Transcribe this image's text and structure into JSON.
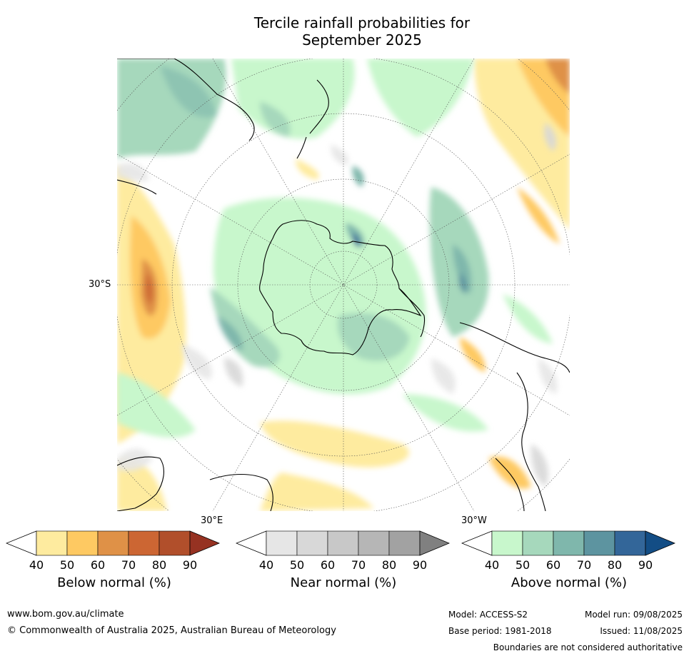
{
  "title_line1": "Tercile rainfall probabilities for",
  "title_line2": "September 2025",
  "map": {
    "projection": "south-polar-stereographic",
    "lat_label": "30°S",
    "lon_labels": {
      "east": "30°E",
      "west": "30°W"
    },
    "colors": {
      "ocean": "#ffffff",
      "coast": "#000000",
      "graticule": "#555555"
    }
  },
  "colorbars": [
    {
      "label": "Below normal (%)",
      "ticks": [
        "40",
        "50",
        "60",
        "70",
        "80",
        "90"
      ],
      "colors": [
        "#ffffff",
        "#feeb9f",
        "#fec962",
        "#df9147",
        "#cc6633",
        "#b14f2b",
        "#963222"
      ]
    },
    {
      "label": "Near normal (%)",
      "ticks": [
        "40",
        "50",
        "60",
        "70",
        "80",
        "90"
      ],
      "colors": [
        "#ffffff",
        "#e6e6e6",
        "#d8d8d8",
        "#c8c8c8",
        "#b6b6b6",
        "#a2a2a2",
        "#808080"
      ]
    },
    {
      "label": "Above normal (%)",
      "ticks": [
        "40",
        "50",
        "60",
        "70",
        "80",
        "90"
      ],
      "colors": [
        "#ffffff",
        "#c8f7cc",
        "#a6d8bc",
        "#7fb7ac",
        "#5d94a0",
        "#336699",
        "#134d85"
      ]
    }
  ],
  "footer": {
    "url": "www.bom.gov.au/climate",
    "copyright": "© Commonwealth of Australia 2025, Australian Bureau of Meteorology",
    "model": "Model: ACCESS-S2",
    "base_period": "Base period: 1981-2018",
    "model_run": "Model run: 09/08/2025",
    "issued": "Issued: 11/08/2025",
    "disclaimer": "Boundaries are not considered authoritative"
  }
}
